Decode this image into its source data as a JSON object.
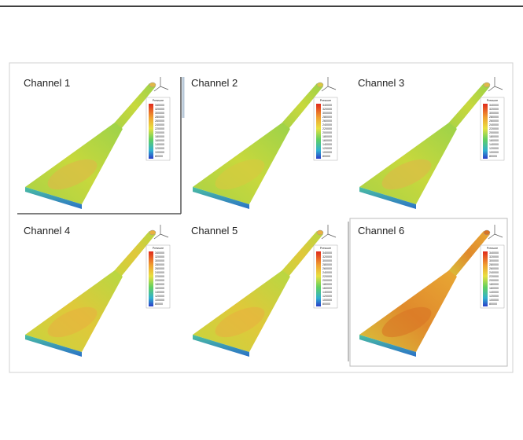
{
  "panels": [
    {
      "title": "Channel 1"
    },
    {
      "title": "Channel 2"
    },
    {
      "title": "Channel 3"
    },
    {
      "title": "Channel 4"
    },
    {
      "title": "Channel 5"
    },
    {
      "title": "Channel 6"
    }
  ],
  "legend": {
    "title": "Pressure",
    "values": [
      "340000",
      "320000",
      "300000",
      "280000",
      "260000",
      "240000",
      "220000",
      "200000",
      "180000",
      "160000",
      "140000",
      "120000",
      "100000",
      "80000"
    ]
  }
}
